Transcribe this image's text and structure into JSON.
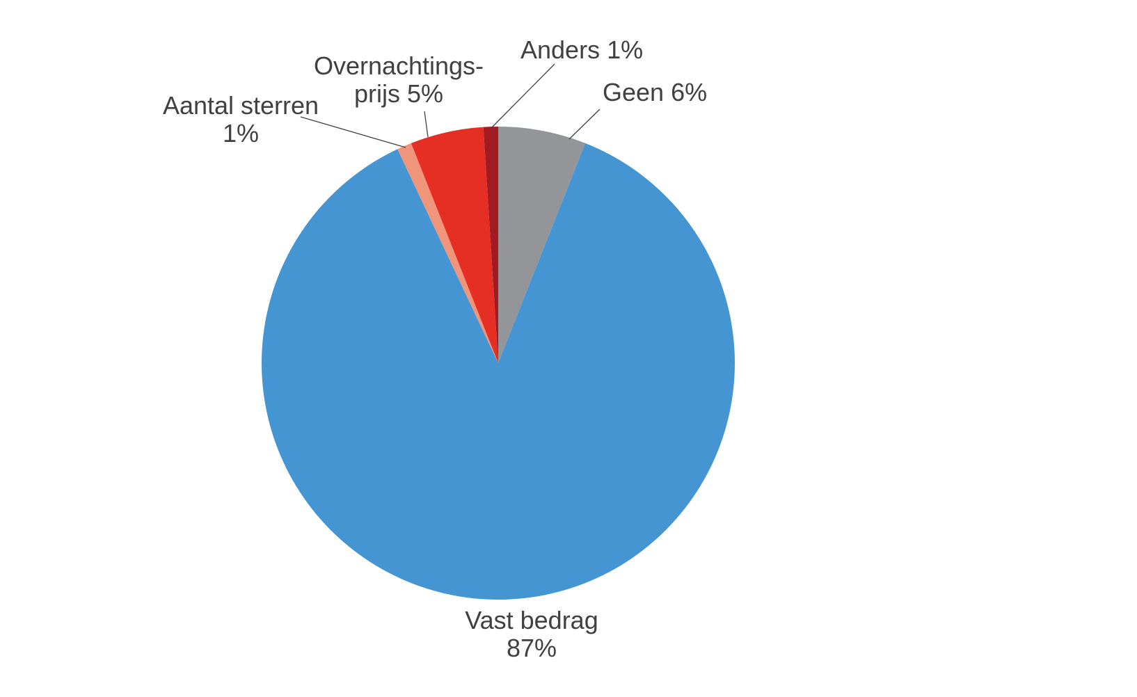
{
  "chart_data": {
    "type": "pie",
    "categories": [
      "Geen",
      "Vast bedrag",
      "Aantal sterren",
      "Overnachtings-prijs",
      "Anders"
    ],
    "values": [
      6,
      87,
      1,
      5,
      1
    ],
    "value_labels": [
      "6%",
      "87%",
      "1%",
      "5%",
      "1%"
    ],
    "colors": [
      "#939598",
      "#4495d1",
      "#f1957a",
      "#e52f25",
      "#a21b22"
    ]
  }
}
